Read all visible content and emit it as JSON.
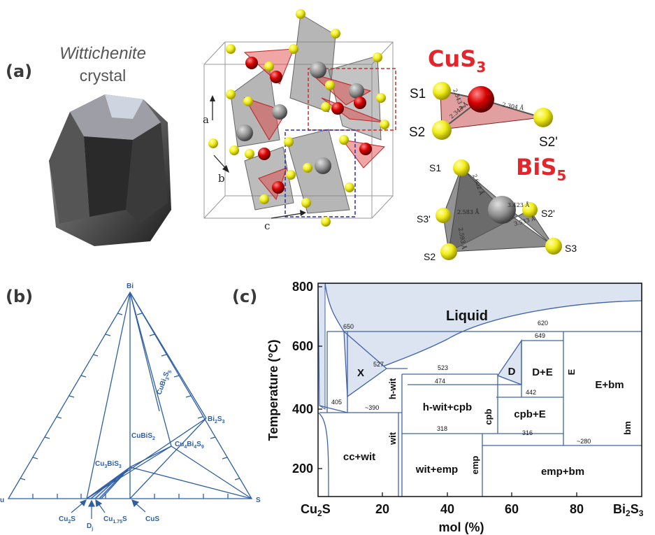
{
  "panel_a": {
    "label": "(a)",
    "mineral_name": "Wittichenite",
    "mineral_sub": "crystal",
    "axis_a": "a",
    "axis_b": "b",
    "axis_c": "c",
    "cus3": {
      "title": "CuS",
      "sub": "3",
      "s1": "S1",
      "s2": "S2",
      "s2p": "S2'",
      "d1": "2.343 Å",
      "d2": "2.343 Å",
      "d3": "2.304 Å"
    },
    "bis5": {
      "title": "BiS",
      "sub": "5",
      "s1": "S1",
      "s2": "S2",
      "s2p": "S2'",
      "s3": "S3",
      "s3p": "S3'",
      "d1": "2.602 Å",
      "d2": "2.583 Å",
      "d3": "2.593 Å",
      "d4": "3.423 Å",
      "d5": "3.533 Å"
    },
    "colors": {
      "sulfur": "#e6e31a",
      "copper": "#d40000",
      "bismuth": "#8a8a8a",
      "title_red": "#e3262b"
    }
  },
  "panel_b": {
    "label": "(b)",
    "apex": "Bi",
    "left_corner": "u",
    "right_corner": "S",
    "phases": {
      "bi2s3": "Bi",
      "cubi3s5": "CuBi",
      "cubis2": "CuBiS",
      "cu4bi4s9": "Cu",
      "cu3bis3": "Cu"
    },
    "bottom": {
      "cu2s": "Cu",
      "dj": "D",
      "cu175s": "Cu",
      "cus": "CuS"
    },
    "color": "#2f5fa3"
  },
  "panel_c": {
    "label": "(c)",
    "ylabel": "Temperature (°C)",
    "xlabel": "mol (%)",
    "y_ticks": [
      "200",
      "400",
      "600",
      "800"
    ],
    "x_ticks": [
      "20",
      "40",
      "60",
      "80"
    ],
    "x_left": "Cu",
    "x_right": "Bi",
    "fields": {
      "liquid": "Liquid",
      "x": "X",
      "d": "D",
      "de": "D+E",
      "e": "E",
      "ebm": "E+bm",
      "hwit": "h-wit",
      "hwitcpb": "h-wit+cpb",
      "cpb": "cpb",
      "cpbe": "cpb+E",
      "bm": "bm",
      "wit": "wit",
      "ccwit": "cc+wit",
      "witemp": "wit+emp",
      "emp": "emp",
      "empbm": "emp+bm"
    },
    "temps": {
      "t650": "650",
      "t620": "620",
      "t649": "649",
      "t527": "527",
      "t523": "523",
      "t474": "474",
      "t442": "442",
      "t405": "405",
      "t390": "~390",
      "t318": "318",
      "t316": "316",
      "t280": "~280"
    },
    "colors": {
      "line": "#3f63a8",
      "fill": "#dde4f1"
    },
    "chart_data": {
      "type": "phase-diagram",
      "x_range": [
        0,
        100
      ],
      "y_range": [
        100,
        830
      ],
      "isotherms": [
        650,
        649,
        620,
        527,
        523,
        474,
        442,
        405,
        390,
        318,
        316,
        280
      ]
    }
  }
}
